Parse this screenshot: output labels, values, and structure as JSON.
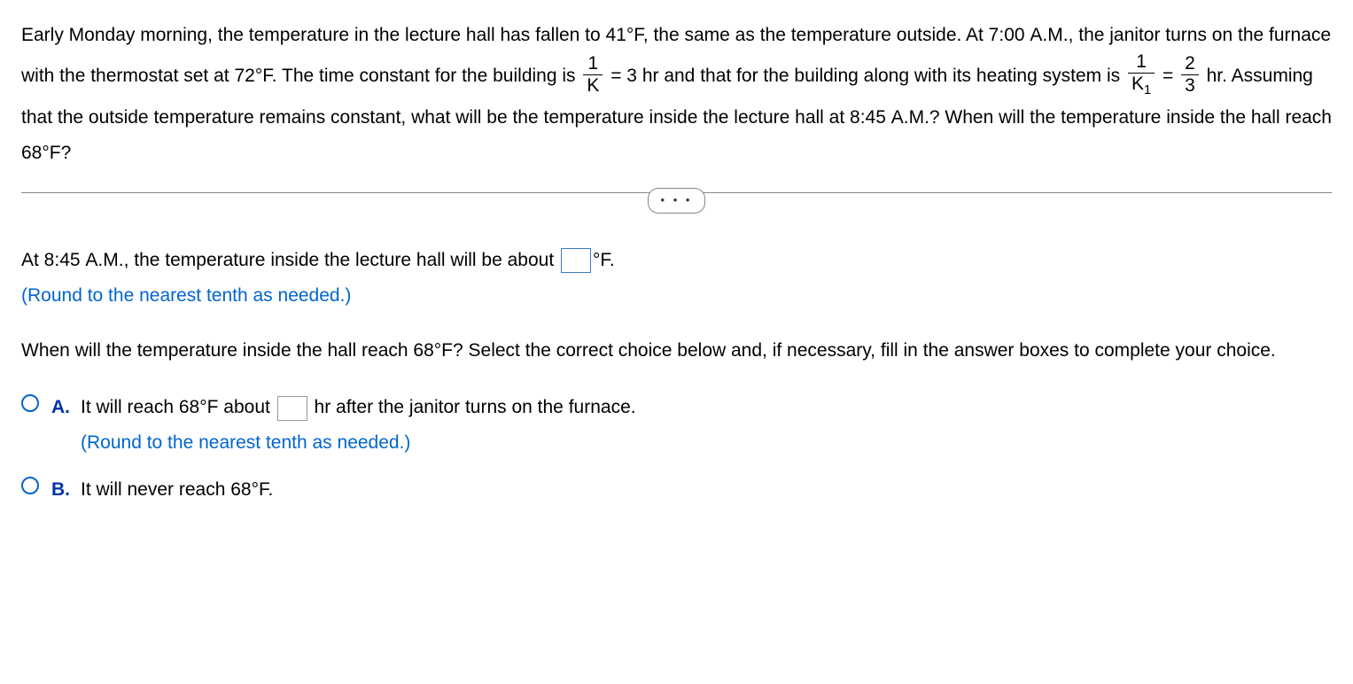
{
  "problem": {
    "seg1": "Early Monday morning, the temperature in the lecture hall has fallen to ",
    "temp_initial": "41",
    "seg2": "F, the same as the temperature outside. At 7:00 ",
    "am": "A.M.",
    "seg3": ", the janitor turns on the furnace with the thermostat set at ",
    "temp_thermostat": "72",
    "seg4": "F. The time constant for the building is ",
    "frac1_num": "1",
    "frac1_den": "K",
    "tc1_eq": " = 3 hr and that for the building along with its heating system is ",
    "frac2_num": "1",
    "frac2_den_k": "K",
    "frac2_den_sub": "1",
    "eq_sign": " = ",
    "frac3_num": "2",
    "frac3_den": "3",
    "seg5": " hr. Assuming that the outside temperature remains constant, what will be the temperature inside the lecture hall at 8:45 ",
    "seg6": "? When will the temperature inside the hall reach ",
    "temp_target": "68",
    "seg7": "F?"
  },
  "dots": "• • •",
  "q1": {
    "prefix": "At 8:45 ",
    "am": "A.M.",
    "mid": ", the temperature inside the lecture hall will be about ",
    "suffix": "F.",
    "hint": "(Round to the nearest tenth as needed.)"
  },
  "q2": {
    "prompt_a": "When will the temperature inside the hall reach ",
    "temp": "68",
    "prompt_b": "F? Select the correct choice below and, if necessary, fill in the answer boxes to complete your choice."
  },
  "choices": {
    "a": {
      "label": "A.",
      "pre": "It will reach ",
      "temp": "68",
      "mid": "F about ",
      "post": " hr after the janitor turns on the furnace.",
      "hint": "(Round to the nearest tenth as needed.)"
    },
    "b": {
      "label": "B.",
      "pre": "It will never reach ",
      "temp": "68",
      "post": "F."
    }
  },
  "deg": "°"
}
